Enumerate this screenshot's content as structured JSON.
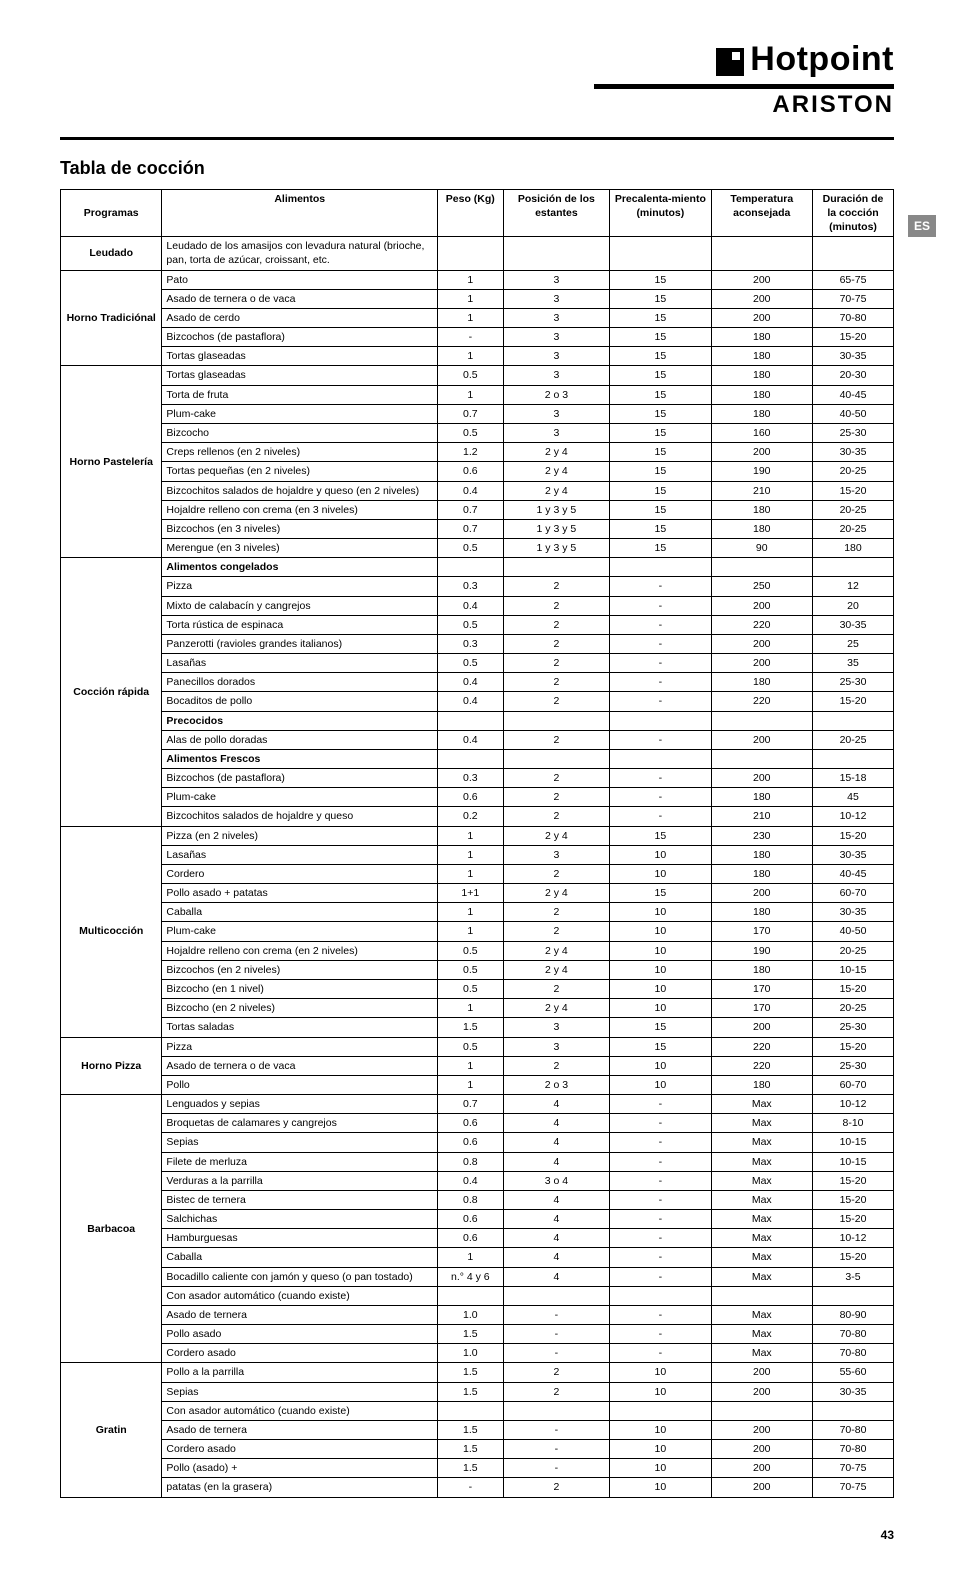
{
  "brand": {
    "hotpoint": "Hotpoint",
    "ariston": "ARISTON"
  },
  "badge": "ES",
  "section_title": "Tabla de cocción",
  "page_number": "43",
  "headers": {
    "programas": "Programas",
    "alimentos": "Alimentos",
    "peso": "Peso (Kg)",
    "posicion": "Posición de los estantes",
    "precalenta": "Precalenta-miento (minutos)",
    "temperatura": "Temperatura aconsejada",
    "duracion": "Duración de la cocción (minutos)"
  },
  "programs": [
    {
      "name": "Leudado",
      "rows": [
        {
          "alim": "Leudado de los amasijos con levadura natural (brioche, pan, torta de azúcar, croissant, etc.",
          "peso": "",
          "pos": "",
          "prec": "",
          "temp": "",
          "dur": ""
        }
      ]
    },
    {
      "name": "Horno Tradiciónal",
      "rows": [
        {
          "alim": "Pato",
          "peso": "1",
          "pos": "3",
          "prec": "15",
          "temp": "200",
          "dur": "65-75"
        },
        {
          "alim": "Asado de ternera o de vaca",
          "peso": "1",
          "pos": "3",
          "prec": "15",
          "temp": "200",
          "dur": "70-75"
        },
        {
          "alim": "Asado de cerdo",
          "peso": "1",
          "pos": "3",
          "prec": "15",
          "temp": "200",
          "dur": "70-80"
        },
        {
          "alim": "Bizcochos (de pastaflora)",
          "peso": "-",
          "pos": "3",
          "prec": "15",
          "temp": "180",
          "dur": "15-20"
        },
        {
          "alim": "Tortas glaseadas",
          "peso": "1",
          "pos": "3",
          "prec": "15",
          "temp": "180",
          "dur": "30-35"
        }
      ]
    },
    {
      "name": "Horno Pastelería",
      "rows": [
        {
          "alim": "Tortas glaseadas",
          "peso": "0.5",
          "pos": "3",
          "prec": "15",
          "temp": "180",
          "dur": "20-30"
        },
        {
          "alim": "Torta de fruta",
          "peso": "1",
          "pos": "2 o 3",
          "prec": "15",
          "temp": "180",
          "dur": "40-45"
        },
        {
          "alim": "Plum-cake",
          "peso": "0.7",
          "pos": "3",
          "prec": "15",
          "temp": "180",
          "dur": "40-50"
        },
        {
          "alim": "Bizcocho",
          "peso": "0.5",
          "pos": "3",
          "prec": "15",
          "temp": "160",
          "dur": "25-30"
        },
        {
          "alim": "Creps rellenos (en 2 niveles)",
          "peso": "1.2",
          "pos": "2 y 4",
          "prec": "15",
          "temp": "200",
          "dur": "30-35"
        },
        {
          "alim": "Tortas pequeñas (en 2 niveles)",
          "peso": "0.6",
          "pos": "2 y 4",
          "prec": "15",
          "temp": "190",
          "dur": "20-25"
        },
        {
          "alim": "Bizcochitos salados de hojaldre y queso (en 2 niveles)",
          "peso": "0.4",
          "pos": "2 y 4",
          "prec": "15",
          "temp": "210",
          "dur": "15-20"
        },
        {
          "alim": "Hojaldre relleno con crema (en 3 niveles)",
          "peso": "0.7",
          "pos": "1 y 3 y 5",
          "prec": "15",
          "temp": "180",
          "dur": "20-25"
        },
        {
          "alim": "Bizcochos (en 3 niveles)",
          "peso": "0.7",
          "pos": "1 y 3 y 5",
          "prec": "15",
          "temp": "180",
          "dur": "20-25"
        },
        {
          "alim": "Merengue (en 3 niveles)",
          "peso": "0.5",
          "pos": "1 y 3 y 5",
          "prec": "15",
          "temp": "90",
          "dur": "180"
        }
      ]
    },
    {
      "name": "Cocción rápida",
      "subgroups": [
        {
          "title": "Alimentos congelados",
          "rows": [
            {
              "alim": "Pizza",
              "peso": "0.3",
              "pos": "2",
              "prec": "-",
              "temp": "250",
              "dur": "12"
            },
            {
              "alim": "Mixto de calabacín y cangrejos",
              "peso": "0.4",
              "pos": "2",
              "prec": "-",
              "temp": "200",
              "dur": "20"
            },
            {
              "alim": "Torta rústica de espinaca",
              "peso": "0.5",
              "pos": "2",
              "prec": "-",
              "temp": "220",
              "dur": "30-35"
            },
            {
              "alim": "Panzerotti (ravioles grandes italianos)",
              "peso": "0.3",
              "pos": "2",
              "prec": "-",
              "temp": "200",
              "dur": "25"
            },
            {
              "alim": "Lasañas",
              "peso": "0.5",
              "pos": "2",
              "prec": "-",
              "temp": "200",
              "dur": "35"
            },
            {
              "alim": "Panecillos dorados",
              "peso": "0.4",
              "pos": "2",
              "prec": "-",
              "temp": "180",
              "dur": "25-30"
            },
            {
              "alim": "Bocaditos de pollo",
              "peso": "0.4",
              "pos": "2",
              "prec": "-",
              "temp": "220",
              "dur": "15-20"
            }
          ]
        },
        {
          "title": "Precocidos",
          "rows": [
            {
              "alim": "Alas de pollo doradas",
              "peso": "0.4",
              "pos": "2",
              "prec": "-",
              "temp": "200",
              "dur": "20-25"
            }
          ]
        },
        {
          "title": "Alimentos Frescos",
          "rows": [
            {
              "alim": "Bizcochos (de pastaflora)",
              "peso": "0.3",
              "pos": "2",
              "prec": "-",
              "temp": "200",
              "dur": "15-18"
            },
            {
              "alim": "Plum-cake",
              "peso": "0.6",
              "pos": "2",
              "prec": "-",
              "temp": "180",
              "dur": "45"
            },
            {
              "alim": "Bizcochitos salados de hojaldre y queso",
              "peso": "0.2",
              "pos": "2",
              "prec": "-",
              "temp": "210",
              "dur": "10-12"
            }
          ]
        }
      ]
    },
    {
      "name": "Multicocción",
      "rows": [
        {
          "alim": "Pizza (en 2 niveles)",
          "peso": "1",
          "pos": "2 y 4",
          "prec": "15",
          "temp": "230",
          "dur": "15-20"
        },
        {
          "alim": "Lasañas",
          "peso": "1",
          "pos": "3",
          "prec": "10",
          "temp": "180",
          "dur": "30-35"
        },
        {
          "alim": "Cordero",
          "peso": "1",
          "pos": "2",
          "prec": "10",
          "temp": "180",
          "dur": "40-45"
        },
        {
          "alim": "Pollo asado + patatas",
          "peso": "1+1",
          "pos": "2 y 4",
          "prec": "15",
          "temp": "200",
          "dur": "60-70"
        },
        {
          "alim": "Caballa",
          "peso": "1",
          "pos": "2",
          "prec": "10",
          "temp": "180",
          "dur": "30-35"
        },
        {
          "alim": "Plum-cake",
          "peso": "1",
          "pos": "2",
          "prec": "10",
          "temp": "170",
          "dur": "40-50"
        },
        {
          "alim": "Hojaldre relleno con crema (en 2 niveles)",
          "peso": "0.5",
          "pos": "2 y 4",
          "prec": "10",
          "temp": "190",
          "dur": "20-25"
        },
        {
          "alim": "Bizcochos (en 2 niveles)",
          "peso": "0.5",
          "pos": "2 y 4",
          "prec": "10",
          "temp": "180",
          "dur": "10-15"
        },
        {
          "alim": "Bizcocho (en 1 nivel)",
          "peso": "0.5",
          "pos": "2",
          "prec": "10",
          "temp": "170",
          "dur": "15-20"
        },
        {
          "alim": "Bizcocho (en 2 niveles)",
          "peso": "1",
          "pos": "2 y 4",
          "prec": "10",
          "temp": "170",
          "dur": "20-25"
        },
        {
          "alim": "Tortas saladas",
          "peso": "1.5",
          "pos": "3",
          "prec": "15",
          "temp": "200",
          "dur": "25-30"
        }
      ]
    },
    {
      "name": "Horno Pizza",
      "rows": [
        {
          "alim": "Pizza",
          "peso": "0.5",
          "pos": "3",
          "prec": "15",
          "temp": "220",
          "dur": "15-20"
        },
        {
          "alim": "Asado de ternera o de vaca",
          "peso": "1",
          "pos": "2",
          "prec": "10",
          "temp": "220",
          "dur": "25-30"
        },
        {
          "alim": "Pollo",
          "peso": "1",
          "pos": "2 o 3",
          "prec": "10",
          "temp": "180",
          "dur": "60-70"
        }
      ]
    },
    {
      "name": "Barbacoa",
      "rows": [
        {
          "alim": "Lenguados y sepias",
          "peso": "0.7",
          "pos": "4",
          "prec": "-",
          "temp": "Max",
          "dur": "10-12"
        },
        {
          "alim": "Broquetas de calamares y cangrejos",
          "peso": "0.6",
          "pos": "4",
          "prec": "-",
          "temp": "Max",
          "dur": "8-10"
        },
        {
          "alim": "Sepias",
          "peso": "0.6",
          "pos": "4",
          "prec": "-",
          "temp": "Max",
          "dur": "10-15"
        },
        {
          "alim": "Filete de merluza",
          "peso": "0.8",
          "pos": "4",
          "prec": "-",
          "temp": "Max",
          "dur": "10-15"
        },
        {
          "alim": "Verduras a la parrilla",
          "peso": "0.4",
          "pos": "3 o 4",
          "prec": "-",
          "temp": "Max",
          "dur": "15-20"
        },
        {
          "alim": "Bistec de ternera",
          "peso": "0.8",
          "pos": "4",
          "prec": "-",
          "temp": "Max",
          "dur": "15-20"
        },
        {
          "alim": "Salchichas",
          "peso": "0.6",
          "pos": "4",
          "prec": "-",
          "temp": "Max",
          "dur": "15-20"
        },
        {
          "alim": "Hamburguesas",
          "peso": "0.6",
          "pos": "4",
          "prec": "-",
          "temp": "Max",
          "dur": "10-12"
        },
        {
          "alim": "Caballa",
          "peso": "1",
          "pos": "4",
          "prec": "-",
          "temp": "Max",
          "dur": "15-20"
        },
        {
          "alim": "Bocadillo caliente con jamón y queso (o pan tostado)",
          "peso": "n.° 4 y 6",
          "pos": "4",
          "prec": "-",
          "temp": "Max",
          "dur": "3-5"
        },
        {
          "alim": "Con asador automático (cuando existe)",
          "peso": "",
          "pos": "",
          "prec": "",
          "temp": "",
          "dur": ""
        },
        {
          "alim": "Asado de ternera",
          "peso": "1.0",
          "pos": "-",
          "prec": "-",
          "temp": "Max",
          "dur": "80-90"
        },
        {
          "alim": "Pollo asado",
          "peso": "1.5",
          "pos": "-",
          "prec": "-",
          "temp": "Max",
          "dur": "70-80"
        },
        {
          "alim": "Cordero asado",
          "peso": "1.0",
          "pos": "-",
          "prec": "-",
          "temp": "Max",
          "dur": "70-80"
        }
      ]
    },
    {
      "name": "Gratin",
      "rows": [
        {
          "alim": "Pollo a la parrilla",
          "peso": "1.5",
          "pos": "2",
          "prec": "10",
          "temp": "200",
          "dur": "55-60"
        },
        {
          "alim": "Sepias",
          "peso": "1.5",
          "pos": "2",
          "prec": "10",
          "temp": "200",
          "dur": "30-35"
        },
        {
          "alim": "Con asador automático (cuando existe)",
          "peso": "",
          "pos": "",
          "prec": "",
          "temp": "",
          "dur": ""
        },
        {
          "alim": "Asado de ternera",
          "peso": "1.5",
          "pos": "-",
          "prec": "10",
          "temp": "200",
          "dur": "70-80"
        },
        {
          "alim": "Cordero asado",
          "peso": "1.5",
          "pos": "-",
          "prec": "10",
          "temp": "200",
          "dur": "70-80"
        },
        {
          "alim": "Pollo (asado) +",
          "peso": "1.5",
          "pos": "-",
          "prec": "10",
          "temp": "200",
          "dur": "70-75"
        },
        {
          "alim": "patatas (en la grasera)",
          "peso": "-",
          "pos": "2",
          "prec": "10",
          "temp": "200",
          "dur": "70-75"
        }
      ]
    }
  ]
}
